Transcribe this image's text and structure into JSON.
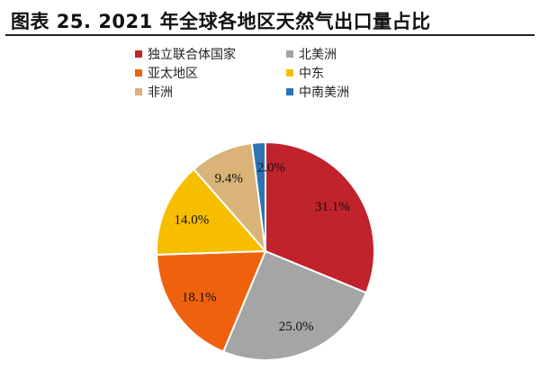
{
  "title": "图表 25. 2021 年全球各地区天然气出口量占比",
  "chart_data": {
    "type": "pie",
    "title": "图表 25. 2021 年全球各地区天然气出口量占比",
    "legend_position": "top",
    "slices": [
      {
        "name": "独立联合体国家",
        "value": 31.1,
        "label": "31.1%",
        "color": "#c0232b"
      },
      {
        "name": "北美洲",
        "value": 25.0,
        "label": "25.0%",
        "color": "#a5a5a5"
      },
      {
        "name": "亚太地区",
        "value": 18.1,
        "label": "18.1%",
        "color": "#f0610e"
      },
      {
        "name": "中东",
        "value": 14.0,
        "label": "14.0%",
        "color": "#f7be00"
      },
      {
        "name": "非洲",
        "value": 9.4,
        "label": "9.4%",
        "color": "#d9b377"
      },
      {
        "name": "中南美洲",
        "value": 2.0,
        "label": "2.0%",
        "color": "#2e74b5"
      }
    ]
  }
}
